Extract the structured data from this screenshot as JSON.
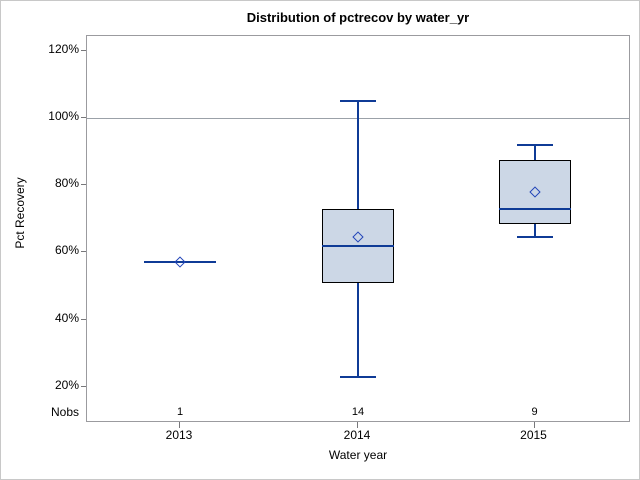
{
  "figure": {
    "title": "Distribution of pctrecov by water_yr",
    "y_axis": {
      "label": "Pct Recovery"
    },
    "x_axis": {
      "label": "Water year"
    },
    "nobs_label": "Nobs"
  },
  "chart_data": {
    "type": "boxplot",
    "title": "Distribution of pctrecov by water_yr",
    "xlabel": "Water year",
    "ylabel": "Pct Recovery",
    "y_tick_labels": [
      "120%",
      "100%",
      "80%",
      "60%",
      "40%",
      "20%"
    ],
    "y_tick_values": [
      120,
      100,
      80,
      60,
      40,
      20
    ],
    "ylim": [
      13,
      124.4
    ],
    "reference_line_pct": 100,
    "grid": "off",
    "categories": [
      "2013",
      "2014",
      "2015"
    ],
    "nobs": [
      "1",
      "14",
      "9"
    ],
    "series": [
      {
        "category": "2013",
        "nobs": 1,
        "min": 57,
        "q1": 57,
        "median": 57,
        "q3": 57,
        "max": 57,
        "mean": 57
      },
      {
        "category": "2014",
        "nobs": 14,
        "min": 23,
        "q1": 51,
        "median": 62,
        "q3": 73,
        "max": 105,
        "mean": 64.5
      },
      {
        "category": "2015",
        "nobs": 9,
        "min": 64.5,
        "q1": 68.5,
        "median": 73,
        "q3": 87.5,
        "max": 92,
        "mean": 78
      }
    ],
    "colors": {
      "box_fill": "#ccd7e6",
      "box_border": "#000000",
      "line_blue": "#0f3b96",
      "mean_marker": "#2144b8",
      "reference_line": "#9ba1a8",
      "frame_gray": "#9b9b9f"
    }
  }
}
